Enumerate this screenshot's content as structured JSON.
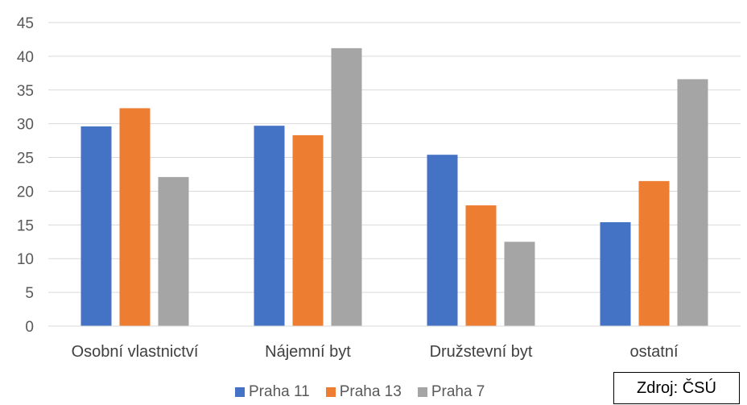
{
  "chart_data": {
    "type": "bar",
    "categories": [
      "Osobní vlastnictví",
      "Nájemní byt",
      "Družstevní byt",
      "ostatní"
    ],
    "series": [
      {
        "name": "Praha 11",
        "color": "#4472C4",
        "values": [
          29.6,
          29.7,
          25.4,
          15.4
        ]
      },
      {
        "name": "Praha 13",
        "color": "#ED7D31",
        "values": [
          32.3,
          28.3,
          17.9,
          21.5
        ]
      },
      {
        "name": "Praha 7",
        "color": "#A5A5A5",
        "values": [
          22.1,
          41.2,
          12.5,
          36.6
        ]
      }
    ],
    "yticks": [
      "0",
      "5",
      "10",
      "15",
      "20",
      "25",
      "30",
      "35",
      "40",
      "45"
    ],
    "ylim": [
      0,
      45
    ],
    "grid": true,
    "legend_position": "bottom"
  },
  "source_label": "Zdroj: ČSÚ"
}
